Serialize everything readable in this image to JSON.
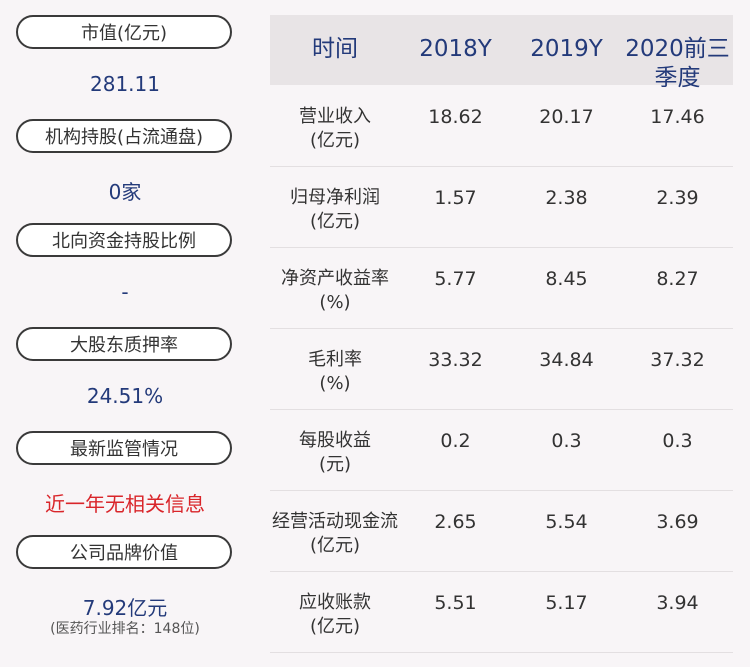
{
  "left": {
    "items": [
      {
        "label": "市值(亿元)",
        "value": "281.11"
      },
      {
        "label": "机构持股(占流通盘)",
        "value": "0家"
      },
      {
        "label": "北向资金持股比例",
        "value": "-"
      },
      {
        "label": "大股东质押率",
        "value": "24.51%"
      },
      {
        "label": "最新监管情况",
        "value": "近一年无相关信息"
      },
      {
        "label": "公司品牌价值",
        "value": "7.92亿元",
        "note": "(医药行业排名：148位)"
      }
    ]
  },
  "table": {
    "headers": [
      "时间",
      "2018Y",
      "2019Y",
      "2020前三\n季度"
    ],
    "rows": [
      {
        "label": "营业收入\n(亿元)",
        "values": [
          "18.62",
          "20.17",
          "17.46"
        ]
      },
      {
        "label": "归母净利润\n(亿元)",
        "values": [
          "1.57",
          "2.38",
          "2.39"
        ]
      },
      {
        "label": "净资产收益率\n(%)",
        "values": [
          "5.77",
          "8.45",
          "8.27"
        ]
      },
      {
        "label": "毛利率\n(%)",
        "values": [
          "33.32",
          "34.84",
          "37.32"
        ]
      },
      {
        "label": "每股收益\n(元)",
        "values": [
          "0.2",
          "0.3",
          "0.3"
        ]
      },
      {
        "label": "经营活动现金流\n(亿元)",
        "values": [
          "2.65",
          "5.54",
          "3.69"
        ]
      },
      {
        "label": "应收账款\n(亿元)",
        "values": [
          "5.51",
          "5.17",
          "3.94"
        ]
      }
    ]
  },
  "colors": {
    "accent_text": "#233a7a",
    "alert_text": "#d9252a",
    "header_bg": "#e8e4e6",
    "page_bg": "#f8f5f7"
  }
}
